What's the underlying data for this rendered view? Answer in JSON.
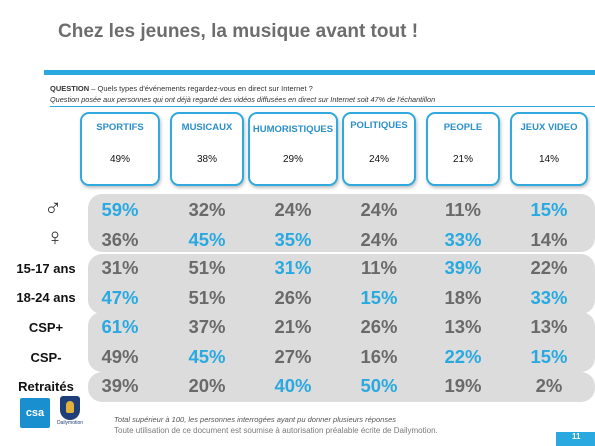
{
  "title": "Chez les jeunes, la musique avant tout !",
  "question": {
    "label": "QUESTION",
    "text": " – Quels types d'événements regardez-vous en direct sur Internet ?",
    "subtext": "Question posée aux personnes qui ont déjà regardé des vidéos diffusées en direct sur Internet soit 47% de l'échantillon"
  },
  "categories": [
    {
      "name": "SPORTIFS",
      "pct": "49%"
    },
    {
      "name": "MUSICAUX",
      "pct": "38%"
    },
    {
      "name": "HUMORISTIQUES",
      "pct": "29%"
    },
    {
      "name": "POLITIQUES",
      "pct": "24%"
    },
    {
      "name": "PEOPLE",
      "pct": "21%"
    },
    {
      "name": "JEUX VIDEO",
      "pct": "14%"
    }
  ],
  "rows": [
    {
      "label": "♂",
      "values": [
        "59%",
        "32%",
        "24%",
        "24%",
        "11%",
        "15%"
      ],
      "highlight": [
        true,
        false,
        false,
        false,
        false,
        true
      ]
    },
    {
      "label": "♀",
      "values": [
        "36%",
        "45%",
        "35%",
        "24%",
        "33%",
        "14%"
      ],
      "highlight": [
        false,
        true,
        true,
        false,
        true,
        false
      ]
    },
    {
      "label": "15-17 ans",
      "values": [
        "31%",
        "51%",
        "31%",
        "11%",
        "39%",
        "22%"
      ],
      "highlight": [
        false,
        false,
        true,
        false,
        true,
        false
      ]
    },
    {
      "label": "18-24 ans",
      "values": [
        "47%",
        "51%",
        "26%",
        "15%",
        "18%",
        "33%"
      ],
      "highlight": [
        true,
        false,
        false,
        true,
        false,
        true
      ]
    },
    {
      "label": "CSP+",
      "values": [
        "61%",
        "37%",
        "21%",
        "26%",
        "13%",
        "13%"
      ],
      "highlight": [
        true,
        false,
        false,
        false,
        false,
        false
      ]
    },
    {
      "label": "CSP-",
      "values": [
        "49%",
        "45%",
        "27%",
        "16%",
        "22%",
        "15%"
      ],
      "highlight": [
        false,
        true,
        false,
        false,
        true,
        true
      ]
    },
    {
      "label": "Retraités",
      "values": [
        "39%",
        "20%",
        "40%",
        "50%",
        "19%",
        "2%"
      ],
      "highlight": [
        false,
        false,
        true,
        true,
        false,
        false
      ]
    }
  ],
  "footnote": "Total supérieur à 100, les personnes interrogées ayant pu donner plusieurs réponses",
  "notice": "Toute utilisation de ce document est soumise à autorisation préalable écrite de Dailymotion.",
  "page_number": "11",
  "logos": {
    "csa": "csa",
    "dailymotion": "Dailymotion"
  },
  "colors": {
    "accent": "#29a9e0",
    "value_gray": "#6a6a6a",
    "band": "#dcdcdc"
  }
}
